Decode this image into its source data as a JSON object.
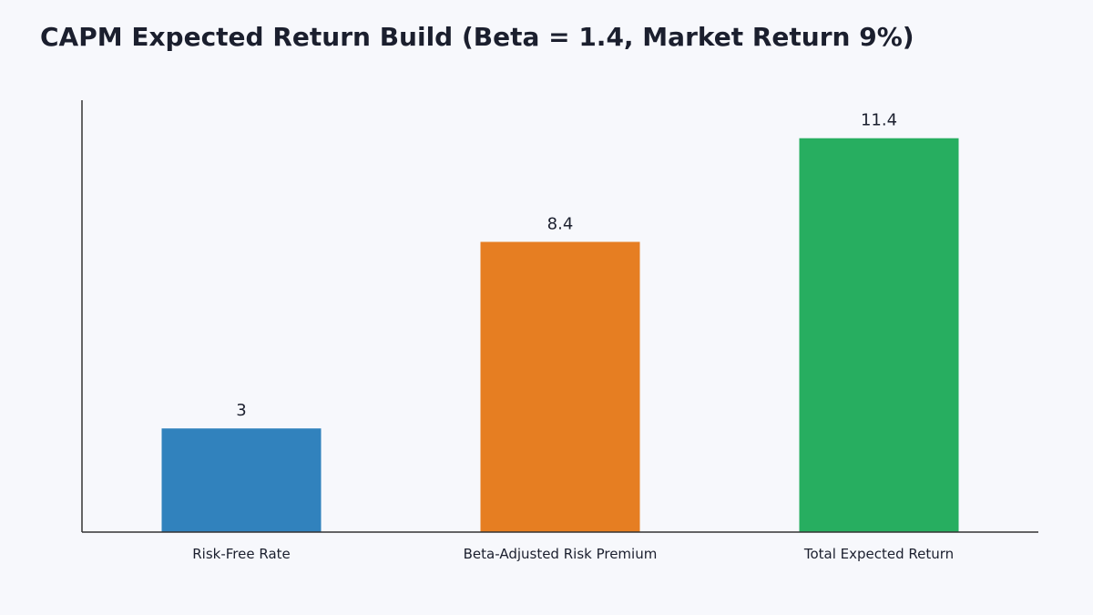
{
  "chart_data": {
    "type": "bar",
    "title": "CAPM Expected Return Build (Beta = 1.4, Market Return 9%)",
    "xlabel": "",
    "ylabel": "",
    "categories": [
      "Risk-Free Rate",
      "Beta-Adjusted Risk Premium",
      "Total Expected Return"
    ],
    "values": [
      3,
      8.4,
      11.4
    ],
    "value_labels": [
      "3",
      "8.4",
      "11.4"
    ],
    "colors": [
      "#3182bd",
      "#e67e22",
      "#27ae60"
    ],
    "ylim": [
      0,
      12.5
    ],
    "grid": false,
    "legend": "none"
  }
}
